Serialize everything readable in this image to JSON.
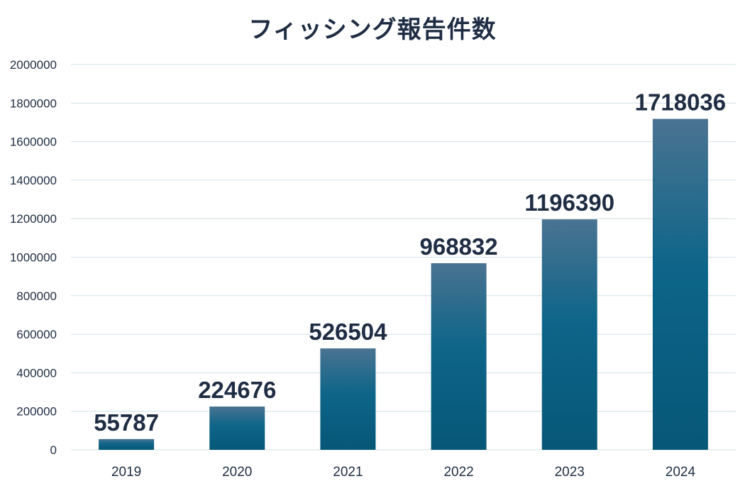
{
  "chart_data": {
    "type": "bar",
    "title": "フィッシング報告件数",
    "xlabel": "",
    "ylabel": "",
    "categories": [
      "2019",
      "2020",
      "2021",
      "2022",
      "2023",
      "2024"
    ],
    "values": [
      55787,
      224676,
      526504,
      968832,
      1196390,
      1718036
    ],
    "ylim": [
      0,
      2000000
    ],
    "yticks": [
      0,
      200000,
      400000,
      600000,
      800000,
      1000000,
      1200000,
      1400000,
      1600000,
      1800000,
      2000000
    ],
    "grid": true,
    "legend": "none",
    "data_labels": true,
    "colors": {
      "bar_top": "#4a7391",
      "bar_bottom": "#075777",
      "grid": "#d2e0e6",
      "text": "#1f2d44"
    }
  }
}
